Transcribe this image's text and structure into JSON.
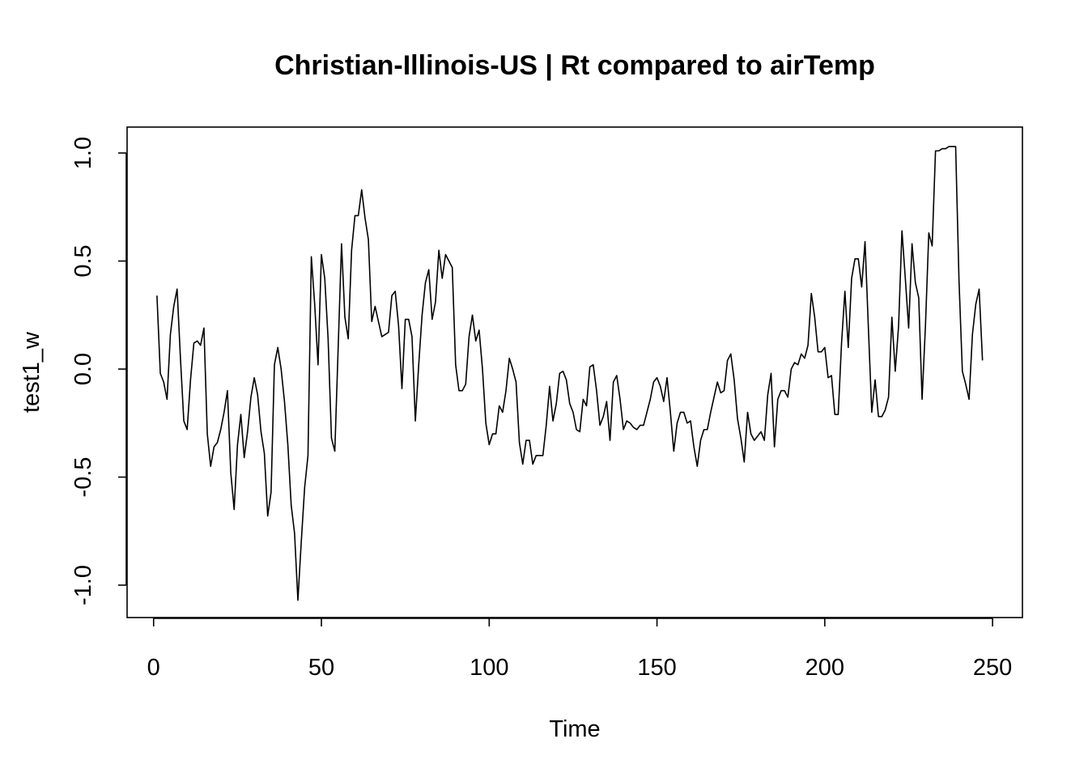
{
  "chart_data": {
    "type": "line",
    "title": "Christian-Illinois-US | Rt compared to airTemp",
    "xlabel": "Time",
    "ylabel": "test1_w",
    "xlim": [
      -7.9,
      258.9
    ],
    "ylim": [
      -1.15,
      1.12
    ],
    "x_ticks": [
      0,
      50,
      100,
      150,
      200,
      250
    ],
    "y_ticks": [
      -1.0,
      -0.5,
      0.0,
      0.5,
      1.0
    ],
    "x_tick_labels": [
      "0",
      "50",
      "100",
      "150",
      "200",
      "250"
    ],
    "y_tick_labels": [
      "-1.0",
      "-0.5",
      "0.0",
      "0.5",
      "1.0"
    ],
    "grid": false,
    "legend": "none",
    "x_start": 1,
    "series": [
      {
        "color": "#000000",
        "values": [
          0.34,
          -0.02,
          -0.06,
          -0.14,
          0.16,
          0.29,
          0.37,
          0.05,
          -0.24,
          -0.28,
          -0.05,
          0.12,
          0.13,
          0.11,
          0.19,
          -0.3,
          -0.45,
          -0.36,
          -0.34,
          -0.28,
          -0.2,
          -0.1,
          -0.48,
          -0.65,
          -0.35,
          -0.21,
          -0.41,
          -0.29,
          -0.13,
          -0.04,
          -0.12,
          -0.29,
          -0.39,
          -0.68,
          -0.57,
          0.02,
          0.1,
          0.0,
          -0.15,
          -0.35,
          -0.63,
          -0.76,
          -1.07,
          -0.8,
          -0.55,
          -0.4,
          0.52,
          0.3,
          0.02,
          0.53,
          0.42,
          0.14,
          -0.32,
          -0.38,
          0.1,
          0.58,
          0.24,
          0.14,
          0.55,
          0.71,
          0.71,
          0.83,
          0.7,
          0.6,
          0.22,
          0.29,
          0.22,
          0.15,
          0.16,
          0.17,
          0.34,
          0.36,
          0.2,
          -0.09,
          0.23,
          0.23,
          0.15,
          -0.24,
          0.02,
          0.25,
          0.4,
          0.46,
          0.23,
          0.31,
          0.55,
          0.42,
          0.53,
          0.5,
          0.47,
          0.02,
          -0.1,
          -0.1,
          -0.07,
          0.15,
          0.25,
          0.13,
          0.18,
          0.0,
          -0.25,
          -0.35,
          -0.3,
          -0.3,
          -0.17,
          -0.2,
          -0.1,
          0.05,
          0.0,
          -0.06,
          -0.34,
          -0.44,
          -0.33,
          -0.33,
          -0.44,
          -0.4,
          -0.4,
          -0.4,
          -0.26,
          -0.08,
          -0.24,
          -0.16,
          -0.02,
          -0.01,
          -0.05,
          -0.16,
          -0.2,
          -0.28,
          -0.29,
          -0.14,
          -0.17,
          0.01,
          0.02,
          -0.1,
          -0.26,
          -0.22,
          -0.15,
          -0.33,
          -0.06,
          -0.03,
          -0.14,
          -0.28,
          -0.24,
          -0.25,
          -0.27,
          -0.28,
          -0.26,
          -0.26,
          -0.2,
          -0.14,
          -0.06,
          -0.04,
          -0.08,
          -0.15,
          -0.04,
          -0.2,
          -0.38,
          -0.25,
          -0.2,
          -0.2,
          -0.25,
          -0.24,
          -0.36,
          -0.45,
          -0.33,
          -0.28,
          -0.28,
          -0.2,
          -0.13,
          -0.06,
          -0.11,
          -0.1,
          0.04,
          0.07,
          -0.05,
          -0.23,
          -0.32,
          -0.43,
          -0.2,
          -0.3,
          -0.33,
          -0.31,
          -0.29,
          -0.33,
          -0.12,
          -0.02,
          -0.36,
          -0.14,
          -0.1,
          -0.1,
          -0.13,
          0.0,
          0.03,
          0.02,
          0.07,
          0.05,
          0.11,
          0.35,
          0.24,
          0.08,
          0.08,
          0.1,
          -0.04,
          -0.03,
          -0.21,
          -0.21,
          0.12,
          0.36,
          0.1,
          0.42,
          0.51,
          0.51,
          0.38,
          0.59,
          0.19,
          -0.2,
          -0.05,
          -0.22,
          -0.22,
          -0.19,
          -0.13,
          0.24,
          -0.01,
          0.2,
          0.64,
          0.42,
          0.19,
          0.58,
          0.4,
          0.33,
          -0.14,
          0.2,
          0.63,
          0.57,
          1.01,
          1.01,
          1.02,
          1.02,
          1.03,
          1.03,
          1.03,
          0.41,
          -0.01,
          -0.07,
          -0.14,
          0.16,
          0.3,
          0.37,
          0.04
        ]
      }
    ]
  }
}
